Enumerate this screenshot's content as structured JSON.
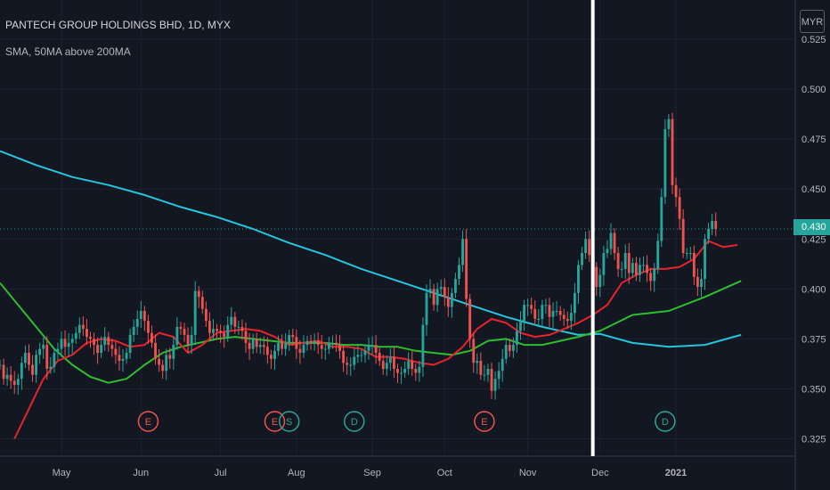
{
  "header": {
    "title": "PANTECH GROUP HOLDINGS BHD, 1D, MYX",
    "indicator": "SMA, 50MA above 200MA",
    "currency": "MYR"
  },
  "last_price": "0.430",
  "chart_data": {
    "type": "candlestick",
    "title": "PANTECH GROUP HOLDINGS BHD, 1D, MYX",
    "ylim": [
      0.322,
      0.527
    ],
    "y_ticks": [
      "0.325",
      "0.350",
      "0.375",
      "0.400",
      "0.425",
      "0.450",
      "0.475",
      "0.500",
      "0.525"
    ],
    "x_ticks": [
      "May",
      "Jun",
      "Jul",
      "Aug",
      "Sep",
      "Oct",
      "Nov",
      "Dec",
      "2021"
    ],
    "x_tick_days": [
      12,
      34,
      56,
      77,
      98,
      118,
      141,
      161,
      182
    ],
    "x_range": [
      -5,
      215
    ],
    "grid": true,
    "colors": {
      "up": "#26a69a",
      "down": "#ef5350",
      "ma200": "#26c6da",
      "ma50": "#2ebd2e",
      "ma_short": "#e8232c",
      "vertical_marker": "#ffffff",
      "background": "#131722"
    },
    "candles": {
      "start_day": -5,
      "step_days": 1,
      "closes": [
        0.362,
        0.355,
        0.357,
        0.354,
        0.352,
        0.355,
        0.363,
        0.368,
        0.362,
        0.357,
        0.367,
        0.37,
        0.372,
        0.36,
        0.361,
        0.368,
        0.37,
        0.375,
        0.371,
        0.373,
        0.375,
        0.378,
        0.382,
        0.38,
        0.376,
        0.375,
        0.372,
        0.368,
        0.372,
        0.376,
        0.372,
        0.37,
        0.367,
        0.364,
        0.365,
        0.368,
        0.377,
        0.381,
        0.385,
        0.389,
        0.384,
        0.378,
        0.373,
        0.365,
        0.362,
        0.359,
        0.367,
        0.365,
        0.372,
        0.381,
        0.38,
        0.377,
        0.372,
        0.377,
        0.399,
        0.396,
        0.39,
        0.384,
        0.378,
        0.38,
        0.379,
        0.378,
        0.376,
        0.382,
        0.386,
        0.381,
        0.381,
        0.379,
        0.373,
        0.37,
        0.375,
        0.371,
        0.372,
        0.371,
        0.367,
        0.365,
        0.369,
        0.373,
        0.37,
        0.373,
        0.377,
        0.376,
        0.37,
        0.368,
        0.372,
        0.374,
        0.373,
        0.374,
        0.372,
        0.37,
        0.37,
        0.373,
        0.373,
        0.372,
        0.369,
        0.363,
        0.362,
        0.362,
        0.366,
        0.367,
        0.367,
        0.369,
        0.372,
        0.372,
        0.368,
        0.364,
        0.36,
        0.363,
        0.366,
        0.36,
        0.358,
        0.358,
        0.36,
        0.364,
        0.36,
        0.358,
        0.361,
        0.382,
        0.398,
        0.4,
        0.392,
        0.4,
        0.401,
        0.396,
        0.391,
        0.398,
        0.405,
        0.412,
        0.425,
        0.395,
        0.375,
        0.363,
        0.364,
        0.357,
        0.357,
        0.36,
        0.349,
        0.355,
        0.359,
        0.365,
        0.372,
        0.369,
        0.372,
        0.379,
        0.384,
        0.392,
        0.392,
        0.39,
        0.385,
        0.385,
        0.392,
        0.392,
        0.386,
        0.389,
        0.389,
        0.387,
        0.385,
        0.384,
        0.388,
        0.398,
        0.412,
        0.418,
        0.425,
        0.417,
        0.411,
        0.401,
        0.407,
        0.418,
        0.42,
        0.428,
        0.418,
        0.41,
        0.41,
        0.418,
        0.408,
        0.413,
        0.407,
        0.412,
        0.412,
        0.408,
        0.404,
        0.41,
        0.424,
        0.446,
        0.48,
        0.485,
        0.452,
        0.446,
        0.435,
        0.418,
        0.418,
        0.418,
        0.406,
        0.401,
        0.405,
        0.425,
        0.43,
        0.434,
        0.43
      ],
      "note": "daily closes read from the candle bodies; colour derived from close vs previous close"
    },
    "series": [
      {
        "key": "ma200",
        "x": [
          -5,
          5,
          15,
          25,
          35,
          45,
          55,
          65,
          75,
          85,
          95,
          105,
          115,
          125,
          135,
          145,
          155,
          161,
          170,
          180,
          190,
          200
        ],
        "values": [
          0.469,
          0.462,
          0.456,
          0.452,
          0.447,
          0.441,
          0.436,
          0.43,
          0.423,
          0.417,
          0.41,
          0.404,
          0.398,
          0.392,
          0.386,
          0.381,
          0.377,
          0.3775,
          0.373,
          0.371,
          0.372,
          0.377
        ]
      },
      {
        "key": "ma50",
        "x": [
          -5,
          5,
          10,
          15,
          20,
          25,
          30,
          35,
          40,
          45,
          50,
          55,
          60,
          65,
          70,
          75,
          80,
          85,
          90,
          95,
          100,
          105,
          110,
          115,
          120,
          125,
          130,
          135,
          140,
          145,
          150,
          155,
          161,
          170,
          180,
          190,
          200
        ],
        "values": [
          0.403,
          0.381,
          0.37,
          0.362,
          0.356,
          0.353,
          0.355,
          0.362,
          0.368,
          0.371,
          0.373,
          0.375,
          0.376,
          0.375,
          0.374,
          0.373,
          0.373,
          0.373,
          0.372,
          0.372,
          0.371,
          0.371,
          0.369,
          0.368,
          0.367,
          0.369,
          0.374,
          0.375,
          0.372,
          0.372,
          0.374,
          0.376,
          0.379,
          0.387,
          0.389,
          0.396,
          0.404
        ]
      },
      {
        "key": "ma_short",
        "x": [
          -1,
          3,
          7,
          11,
          15,
          19,
          23,
          27,
          31,
          35,
          39,
          43,
          47,
          51,
          55,
          59,
          63,
          67,
          71,
          75,
          79,
          83,
          87,
          91,
          95,
          99,
          103,
          107,
          111,
          115,
          119,
          123,
          127,
          131,
          135,
          139,
          143,
          147,
          151,
          155,
          159,
          163,
          167,
          171,
          175,
          179,
          183,
          187,
          191,
          195,
          199
        ],
        "values": [
          0.325,
          0.34,
          0.355,
          0.364,
          0.367,
          0.373,
          0.375,
          0.374,
          0.371,
          0.372,
          0.378,
          0.376,
          0.368,
          0.372,
          0.378,
          0.379,
          0.38,
          0.379,
          0.376,
          0.372,
          0.373,
          0.374,
          0.371,
          0.371,
          0.37,
          0.366,
          0.366,
          0.365,
          0.363,
          0.362,
          0.365,
          0.371,
          0.38,
          0.385,
          0.383,
          0.378,
          0.376,
          0.377,
          0.38,
          0.383,
          0.387,
          0.392,
          0.403,
          0.407,
          0.41,
          0.41,
          0.411,
          0.415,
          0.424,
          0.421,
          0.422
        ]
      }
    ],
    "markers": [
      {
        "label": "E",
        "day": 36,
        "color": "#ef5350"
      },
      {
        "label": "E",
        "day": 71,
        "color": "#ef5350"
      },
      {
        "label": "S",
        "day": 75,
        "color": "#26a69a"
      },
      {
        "label": "D",
        "day": 93,
        "color": "#26a69a"
      },
      {
        "label": "E",
        "day": 129,
        "color": "#ef5350"
      },
      {
        "label": "D",
        "day": 179,
        "color": "#26a69a"
      }
    ],
    "vertical_marker_day": 159,
    "last_price_line": 0.43
  }
}
